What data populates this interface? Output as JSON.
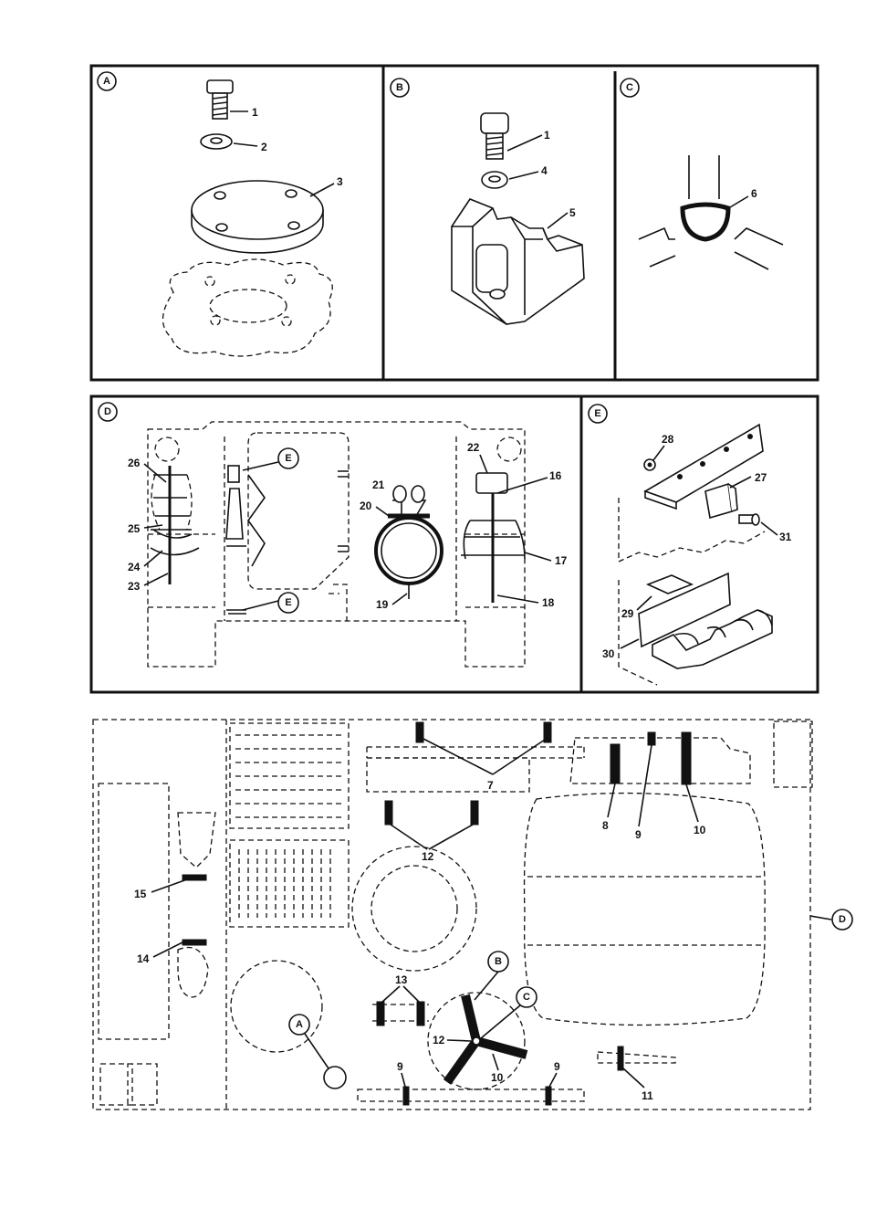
{
  "panels": {
    "A": {
      "letter": "A",
      "callouts": [
        "1",
        "2",
        "3"
      ]
    },
    "B": {
      "letter": "B",
      "callouts": [
        "1",
        "4",
        "5"
      ]
    },
    "C": {
      "letter": "C",
      "callouts": [
        "6"
      ]
    },
    "D": {
      "letter": "D",
      "callouts": [
        "26",
        "25",
        "24",
        "23",
        "22",
        "21",
        "20",
        "19",
        "16",
        "17",
        "18"
      ],
      "detail_refs": [
        "E",
        "E"
      ]
    },
    "E": {
      "letter": "E",
      "callouts": [
        "28",
        "27",
        "31",
        "29",
        "30"
      ]
    }
  },
  "overview": {
    "callouts": [
      "7",
      "8",
      "9",
      "10",
      "12",
      "13",
      "14",
      "15",
      "12",
      "10",
      "9",
      "9",
      "11"
    ],
    "refs": [
      "A",
      "B",
      "C",
      "D"
    ]
  }
}
